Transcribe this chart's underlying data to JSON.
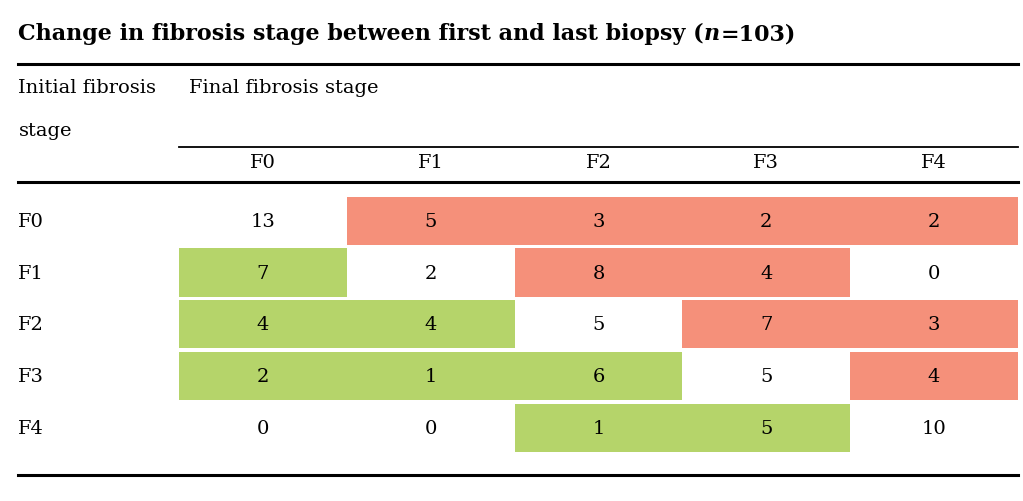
{
  "col_labels": [
    "F0",
    "F1",
    "F2",
    "F3",
    "F4"
  ],
  "row_labels": [
    "F0",
    "F1",
    "F2",
    "F3",
    "F4"
  ],
  "data": [
    [
      13,
      5,
      3,
      2,
      2
    ],
    [
      7,
      2,
      8,
      4,
      0
    ],
    [
      4,
      4,
      5,
      7,
      3
    ],
    [
      2,
      1,
      6,
      5,
      4
    ],
    [
      0,
      0,
      1,
      5,
      10
    ]
  ],
  "cell_colors": [
    [
      "none",
      "red",
      "red",
      "red",
      "red"
    ],
    [
      "green",
      "none",
      "red",
      "red",
      "none"
    ],
    [
      "green",
      "green",
      "none",
      "red",
      "red"
    ],
    [
      "green",
      "green",
      "green",
      "none",
      "red"
    ],
    [
      "none",
      "none",
      "green",
      "green",
      "none"
    ]
  ],
  "green_color": "#b5d46a",
  "red_color": "#f5907a",
  "bg_color": "#ffffff",
  "title_prefix": "Change in fibrosis stage between first and last biopsy (",
  "title_italic": "n",
  "title_suffix": "=103)",
  "row_header_line1": "Initial fibrosis",
  "row_header_line2": "stage",
  "col_header": "Final fibrosis stage",
  "title_fontsize": 16,
  "header_fontsize": 14,
  "cell_fontsize": 14,
  "label_fontsize": 14
}
